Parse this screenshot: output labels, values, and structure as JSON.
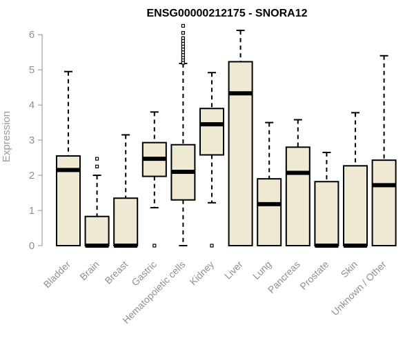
{
  "chart_data": {
    "type": "boxplot",
    "title": "ENSG00000212175 - SNORA12",
    "xlabel": "",
    "ylabel": "Expression",
    "ylim": [
      0,
      6.2
    ],
    "y_ticks": [
      0,
      1,
      2,
      3,
      4,
      5,
      6
    ],
    "colors": {
      "box_fill": "#efe8d2",
      "box_stroke": "#000000",
      "median": "#000000",
      "whisker": "#000000",
      "outlier": "#000000",
      "axis": "#8f8f8f"
    },
    "categories": [
      "Bladder",
      "Brain",
      "Breast",
      "Gastric",
      "Hematopoietic cells",
      "Kidney",
      "Liver",
      "Lung",
      "Pancreas",
      "Prostate",
      "Skin",
      "Unknown / Other"
    ],
    "series": [
      {
        "name": "Bladder",
        "whisker_low": 0,
        "q1": 0,
        "median": 2.15,
        "q3": 2.55,
        "whisker_high": 4.95,
        "outliers": []
      },
      {
        "name": "Brain",
        "whisker_low": 0,
        "q1": 0,
        "median": 0,
        "q3": 0.83,
        "whisker_high": 2.0,
        "outliers": [
          2.25,
          2.47
        ]
      },
      {
        "name": "Breast",
        "whisker_low": 0,
        "q1": 0,
        "median": 0,
        "q3": 1.35,
        "whisker_high": 3.15,
        "outliers": []
      },
      {
        "name": "Gastric",
        "whisker_low": 1.08,
        "q1": 1.97,
        "median": 2.47,
        "q3": 2.93,
        "whisker_high": 3.8,
        "outliers": [
          0
        ]
      },
      {
        "name": "Hematopoietic cells",
        "whisker_low": 0,
        "q1": 1.3,
        "median": 2.1,
        "q3": 2.87,
        "whisker_high": 5.18,
        "outliers": [
          5.2,
          5.28,
          5.35,
          5.42,
          5.5,
          5.58,
          5.66,
          5.74,
          5.82,
          5.9,
          6.05,
          6.25
        ]
      },
      {
        "name": "Kidney",
        "whisker_low": 1.22,
        "q1": 2.58,
        "median": 3.45,
        "q3": 3.9,
        "whisker_high": 4.92,
        "outliers": [
          0
        ]
      },
      {
        "name": "Liver",
        "whisker_low": 0,
        "q1": 0,
        "median": 4.33,
        "q3": 5.23,
        "whisker_high": 6.12,
        "outliers": []
      },
      {
        "name": "Lung",
        "whisker_low": 0,
        "q1": 0,
        "median": 1.18,
        "q3": 1.9,
        "whisker_high": 3.5,
        "outliers": []
      },
      {
        "name": "Pancreas",
        "whisker_low": 0,
        "q1": 0,
        "median": 2.07,
        "q3": 2.8,
        "whisker_high": 3.58,
        "outliers": []
      },
      {
        "name": "Prostate",
        "whisker_low": 0,
        "q1": 0,
        "median": 0,
        "q3": 1.82,
        "whisker_high": 2.65,
        "outliers": []
      },
      {
        "name": "Skin",
        "whisker_low": 0,
        "q1": 0,
        "median": 0,
        "q3": 2.27,
        "whisker_high": 3.78,
        "outliers": []
      },
      {
        "name": "Unknown / Other",
        "whisker_low": 0,
        "q1": 0,
        "median": 1.72,
        "q3": 2.43,
        "whisker_high": 5.4,
        "outliers": []
      }
    ]
  }
}
